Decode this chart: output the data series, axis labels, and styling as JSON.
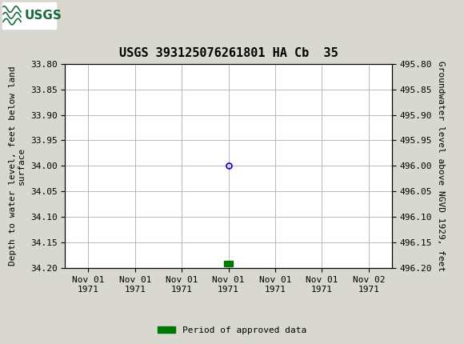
{
  "title": "USGS 393125076261801 HA Cb  35",
  "header_bg_color": "#1a6b3c",
  "plot_bg_color": "#ffffff",
  "fig_bg_color": "#d8d8d0",
  "grid_color": "#b0b0b0",
  "left_ylabel": "Depth to water level, feet below land\nsurface",
  "right_ylabel": "Groundwater level above NGVD 1929, feet",
  "ylim_left": [
    33.8,
    34.2
  ],
  "ylim_right": [
    495.8,
    496.2
  ],
  "yticks_left": [
    33.8,
    33.85,
    33.9,
    33.95,
    34.0,
    34.05,
    34.1,
    34.15,
    34.2
  ],
  "yticks_right": [
    495.8,
    495.85,
    495.9,
    495.95,
    496.0,
    496.05,
    496.1,
    496.15,
    496.2
  ],
  "ytick_labels_left": [
    "33.80",
    "33.85",
    "33.90",
    "33.95",
    "34.00",
    "34.05",
    "34.10",
    "34.15",
    "34.20"
  ],
  "ytick_labels_right": [
    "495.80",
    "495.85",
    "495.90",
    "495.95",
    "496.00",
    "496.05",
    "496.10",
    "496.15",
    "496.20"
  ],
  "xtick_labels": [
    "Nov 01\n1971",
    "Nov 01\n1971",
    "Nov 01\n1971",
    "Nov 01\n1971",
    "Nov 01\n1971",
    "Nov 01\n1971",
    "Nov 02\n1971"
  ],
  "xtick_positions": [
    0,
    1,
    2,
    3,
    4,
    5,
    6
  ],
  "xlim": [
    -0.5,
    6.5
  ],
  "data_point_x": 3.0,
  "data_point_y": 34.0,
  "data_point_color": "#0000cc",
  "data_point_markersize": 5,
  "bar_x": 3.0,
  "bar_y": 34.185,
  "bar_color": "#007700",
  "bar_width": 0.18,
  "bar_height": 0.012,
  "legend_label": "Period of approved data",
  "legend_color": "#007700",
  "title_fontsize": 11,
  "tick_fontsize": 8,
  "ylabel_fontsize": 8,
  "axis_label_color": "#000000",
  "border_color": "#000000",
  "usgs_logo_box_color": "#ffffff",
  "usgs_text_color": "#1a6b3c"
}
